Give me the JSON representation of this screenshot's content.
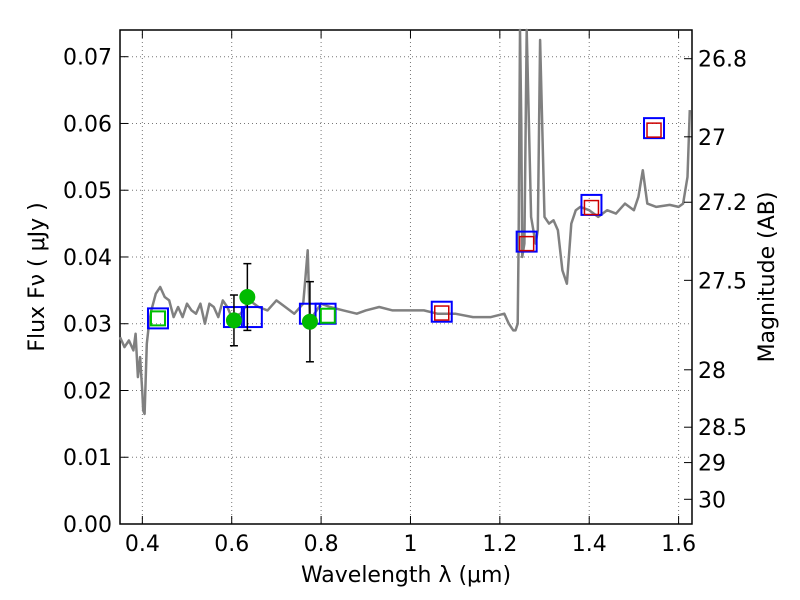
{
  "chart_data": {
    "type": "scatter",
    "xlabel": "Wavelength  λ (μm)",
    "ylabel": "Flux  Fν  ( μJy )",
    "ylabel_right": "Magnitude (AB)",
    "xlim": [
      0.35,
      1.63
    ],
    "ylim": [
      0.0,
      0.074
    ],
    "grid": true,
    "x_ticks": [
      0.4,
      0.6,
      0.8,
      1.0,
      1.2,
      1.4,
      1.6
    ],
    "x_tick_labels": [
      "0.4",
      "0.6",
      "0.8",
      "1",
      "1.2",
      "1.4",
      "1.6"
    ],
    "y_ticks": [
      0.0,
      0.01,
      0.02,
      0.03,
      0.04,
      0.05,
      0.06,
      0.07
    ],
    "y_tick_labels": [
      "0.00",
      "0.01",
      "0.02",
      "0.03",
      "0.04",
      "0.05",
      "0.06",
      "0.07"
    ],
    "right_ticks": [
      {
        "label": "26.8",
        "flux": 0.0697
      },
      {
        "label": "27",
        "flux": 0.058
      },
      {
        "label": "27.2",
        "flux": 0.0482
      },
      {
        "label": "27.5",
        "flux": 0.0365
      },
      {
        "label": "28",
        "flux": 0.0231
      },
      {
        "label": "28.5",
        "flux": 0.0145
      },
      {
        "label": "29",
        "flux": 0.0092
      },
      {
        "label": "30",
        "flux": 0.0037
      }
    ],
    "colors": {
      "sed": "#808080",
      "blue_box": "#0000ff",
      "green_box": "#00c000",
      "red_box": "#cc0000",
      "point": "#00bb00",
      "errorbar": "#000000",
      "grid": "#777777"
    },
    "sed_line": {
      "x": [
        0.35,
        0.36,
        0.37,
        0.38,
        0.385,
        0.39,
        0.395,
        0.4,
        0.402,
        0.405,
        0.41,
        0.415,
        0.42,
        0.43,
        0.44,
        0.45,
        0.46,
        0.47,
        0.48,
        0.49,
        0.5,
        0.51,
        0.52,
        0.53,
        0.54,
        0.55,
        0.56,
        0.57,
        0.58,
        0.59,
        0.6,
        0.62,
        0.64,
        0.66,
        0.68,
        0.7,
        0.72,
        0.74,
        0.76,
        0.765,
        0.77,
        0.775,
        0.78,
        0.79,
        0.8,
        0.82,
        0.85,
        0.88,
        0.9,
        0.93,
        0.96,
        1.0,
        1.03,
        1.06,
        1.1,
        1.14,
        1.18,
        1.21,
        1.22,
        1.23,
        1.235,
        1.24,
        1.242,
        1.245,
        1.248,
        1.25,
        1.255,
        1.26,
        1.27,
        1.28,
        1.285,
        1.29,
        1.3,
        1.31,
        1.32,
        1.33,
        1.34,
        1.35,
        1.36,
        1.37,
        1.38,
        1.4,
        1.42,
        1.44,
        1.46,
        1.48,
        1.5,
        1.51,
        1.52,
        1.53,
        1.55,
        1.58,
        1.6,
        1.61,
        1.62,
        1.625
      ],
      "y": [
        0.028,
        0.0265,
        0.0275,
        0.026,
        0.0285,
        0.022,
        0.025,
        0.0198,
        0.017,
        0.0165,
        0.027,
        0.03,
        0.032,
        0.0345,
        0.0355,
        0.034,
        0.0335,
        0.031,
        0.0325,
        0.031,
        0.033,
        0.032,
        0.0315,
        0.033,
        0.03,
        0.033,
        0.0325,
        0.031,
        0.0335,
        0.0325,
        0.031,
        0.0315,
        0.0335,
        0.0325,
        0.032,
        0.0335,
        0.0325,
        0.0315,
        0.033,
        0.037,
        0.041,
        0.03,
        0.031,
        0.032,
        0.033,
        0.0325,
        0.032,
        0.0315,
        0.032,
        0.0325,
        0.032,
        0.032,
        0.032,
        0.0315,
        0.0315,
        0.031,
        0.031,
        0.0315,
        0.03,
        0.029,
        0.029,
        0.03,
        0.042,
        0.074,
        0.06,
        0.04,
        0.042,
        0.074,
        0.046,
        0.042,
        0.044,
        0.0725,
        0.046,
        0.045,
        0.0455,
        0.044,
        0.038,
        0.036,
        0.045,
        0.047,
        0.0475,
        0.047,
        0.046,
        0.047,
        0.0465,
        0.048,
        0.047,
        0.049,
        0.053,
        0.048,
        0.0475,
        0.0478,
        0.0475,
        0.048,
        0.052,
        0.062
      ]
    },
    "series": [
      {
        "kind": "blue_squares",
        "x": [
          0.435,
          0.605,
          0.645,
          0.775,
          0.81,
          1.07,
          1.26,
          1.405,
          1.545
        ],
        "y": [
          0.0308,
          0.031,
          0.031,
          0.0315,
          0.0315,
          0.0318,
          0.0423,
          0.0478,
          0.0593
        ]
      },
      {
        "kind": "green_squares",
        "x": [
          0.435,
          0.815
        ],
        "y": [
          0.0308,
          0.0312
        ]
      },
      {
        "kind": "red_squares",
        "x": [
          1.07,
          1.26,
          1.405,
          1.545
        ],
        "y": [
          0.0316,
          0.042,
          0.0474,
          0.059
        ]
      },
      {
        "kind": "points_with_errorbars",
        "x": [
          0.605,
          0.635,
          0.775
        ],
        "y": [
          0.0305,
          0.034,
          0.0303
        ],
        "err": [
          0.0038,
          0.005,
          0.006
        ]
      }
    ]
  }
}
